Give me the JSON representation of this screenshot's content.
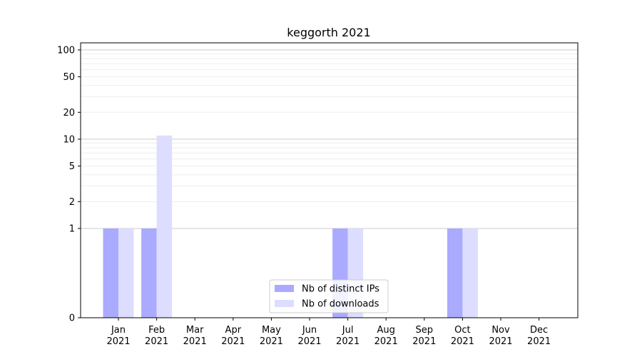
{
  "chart_data": {
    "type": "bar",
    "title": "keggorth 2021",
    "xlabel": "",
    "ylabel": "",
    "yscale": "symlog",
    "ylim": [
      0,
      120
    ],
    "y_ticks": [
      0,
      1,
      2,
      5,
      10,
      20,
      50,
      100
    ],
    "categories": [
      {
        "month": "Jan",
        "year": "2021"
      },
      {
        "month": "Feb",
        "year": "2021"
      },
      {
        "month": "Mar",
        "year": "2021"
      },
      {
        "month": "Apr",
        "year": "2021"
      },
      {
        "month": "May",
        "year": "2021"
      },
      {
        "month": "Jun",
        "year": "2021"
      },
      {
        "month": "Jul",
        "year": "2021"
      },
      {
        "month": "Aug",
        "year": "2021"
      },
      {
        "month": "Sep",
        "year": "2021"
      },
      {
        "month": "Oct",
        "year": "2021"
      },
      {
        "month": "Nov",
        "year": "2021"
      },
      {
        "month": "Dec",
        "year": "2021"
      }
    ],
    "series": [
      {
        "name": "Nb of distinct IPs",
        "color": "#aaaaff",
        "values": [
          1,
          1,
          0,
          0,
          0,
          0,
          1,
          0,
          0,
          1,
          0,
          0
        ]
      },
      {
        "name": "Nb of downloads",
        "color": "#ddddff",
        "values": [
          1,
          11,
          0,
          0,
          0,
          0,
          1,
          0,
          0,
          1,
          0,
          0
        ]
      }
    ],
    "grid": true,
    "legend_position": "bottom-center"
  }
}
